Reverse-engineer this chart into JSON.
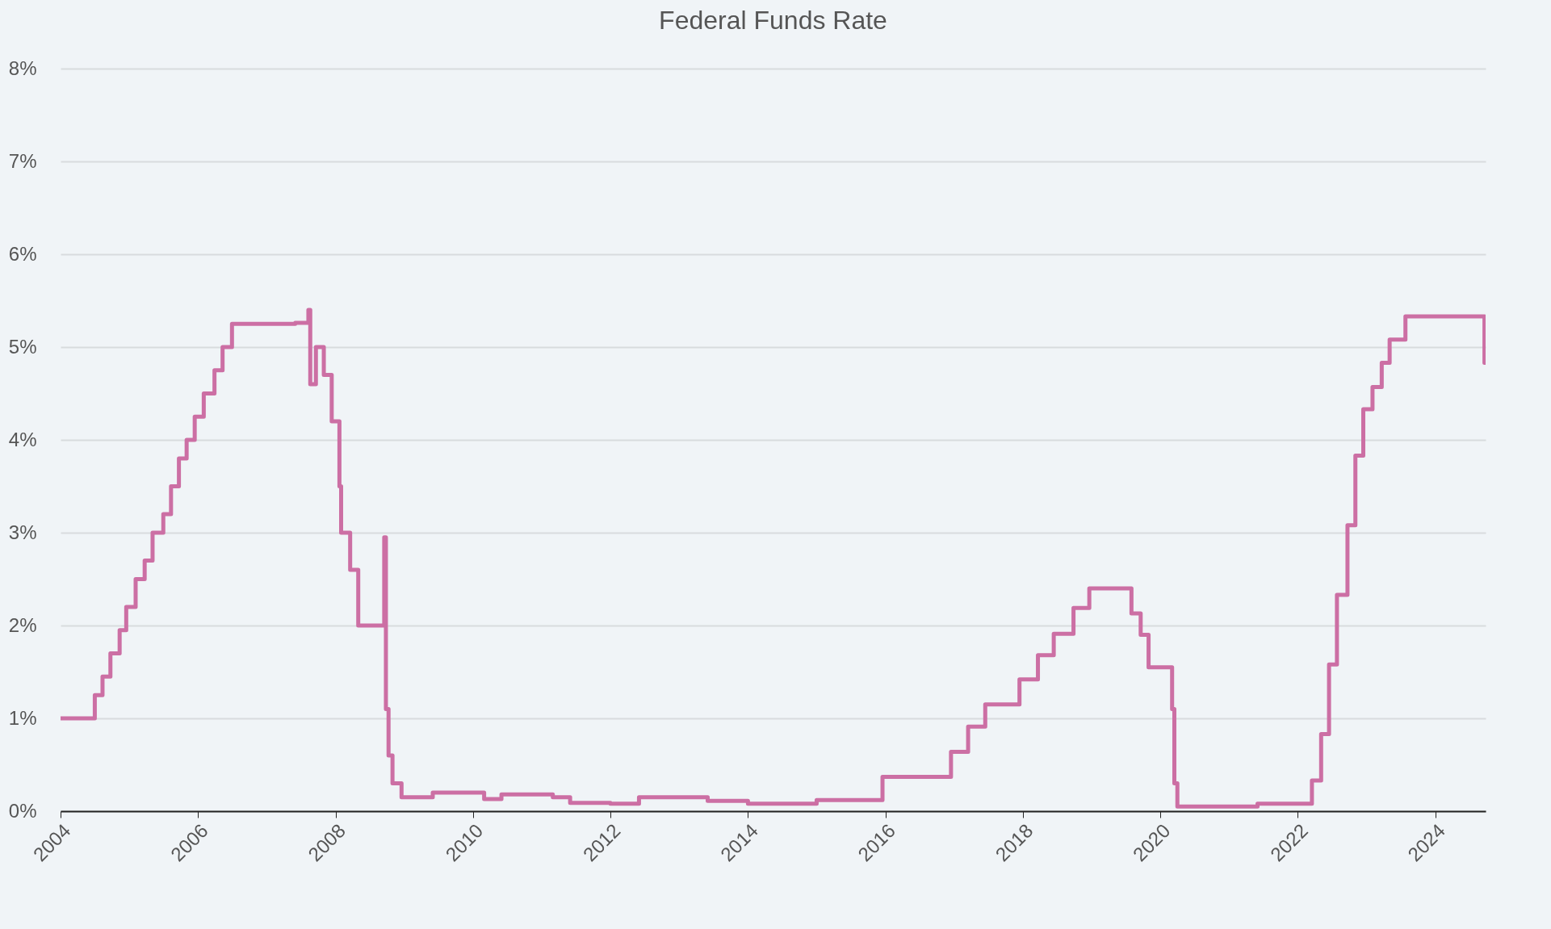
{
  "chart_data": {
    "type": "step",
    "title": "Federal Funds Rate",
    "color": "#cc6fa4",
    "grid": "y",
    "line_style": "solid",
    "x": [
      "2004-01-01",
      "2004-06-30",
      "2004-07-01",
      "2004-08-11",
      "2004-09-22",
      "2004-11-10",
      "2004-12-15",
      "2005-02-03",
      "2005-03-23",
      "2005-05-04",
      "2005-06-30",
      "2005-08-10",
      "2005-09-21",
      "2005-11-01",
      "2005-12-14",
      "2006-01-31",
      "2006-03-29",
      "2006-05-11",
      "2006-06-30",
      "2007-01-15",
      "2007-06-01",
      "2007-08-10",
      "2007-08-20",
      "2007-09-19",
      "2007-10-31",
      "2007-12-12",
      "2008-01-22",
      "2008-01-31",
      "2008-03-19",
      "2008-05-01",
      "2008-09-10",
      "2008-09-16",
      "2008-09-25",
      "2008-10-09",
      "2008-10-30",
      "2008-12-17",
      "2009-06-01",
      "2010-03-01",
      "2010-06-01",
      "2011-03-01",
      "2011-06-01",
      "2012-01-01",
      "2012-06-01",
      "2013-06-01",
      "2014-01-01",
      "2015-01-01",
      "2015-12-17",
      "2016-12-15",
      "2017-03-16",
      "2017-06-15",
      "2017-12-14",
      "2018-03-22",
      "2018-06-14",
      "2018-09-27",
      "2018-12-20",
      "2019-08-01",
      "2019-09-19",
      "2019-10-31",
      "2020-03-04",
      "2020-03-16",
      "2020-04-01",
      "2021-06-01",
      "2022-03-17",
      "2022-05-05",
      "2022-06-16",
      "2022-07-28",
      "2022-09-22",
      "2022-11-03",
      "2022-12-15",
      "2023-02-02",
      "2023-03-23",
      "2023-05-04",
      "2023-07-27",
      "2024-09-19",
      "2024-09-25"
    ],
    "values": [
      1.0,
      1.0,
      1.25,
      1.45,
      1.7,
      1.95,
      2.2,
      2.5,
      2.7,
      3.0,
      3.2,
      3.5,
      3.8,
      4.0,
      4.25,
      4.5,
      4.75,
      5.0,
      5.25,
      5.25,
      5.26,
      5.4,
      4.6,
      5.0,
      4.7,
      4.2,
      3.5,
      3.0,
      2.6,
      2.0,
      2.0,
      2.95,
      1.1,
      0.6,
      0.3,
      0.15,
      0.2,
      0.13,
      0.18,
      0.15,
      0.09,
      0.08,
      0.15,
      0.11,
      0.08,
      0.12,
      0.37,
      0.64,
      0.91,
      1.15,
      1.42,
      1.68,
      1.91,
      2.19,
      2.4,
      2.13,
      1.9,
      1.55,
      1.1,
      0.3,
      0.05,
      0.08,
      0.33,
      0.83,
      1.58,
      2.33,
      3.08,
      3.83,
      4.33,
      4.57,
      4.83,
      5.08,
      5.33,
      4.83,
      4.83
    ],
    "xlim": [
      "2004-01-01",
      "2024-09-25"
    ],
    "xticks": [
      "2004",
      "2006",
      "2008",
      "2010",
      "2012",
      "2014",
      "2016",
      "2018",
      "2020",
      "2022",
      "2024"
    ],
    "ylim": [
      0,
      8
    ],
    "yticks": [
      {
        "value": 0,
        "label": "0%"
      },
      {
        "value": 1,
        "label": "1%"
      },
      {
        "value": 2,
        "label": "2%"
      },
      {
        "value": 3,
        "label": "3%"
      },
      {
        "value": 4,
        "label": "4%"
      },
      {
        "value": 5,
        "label": "5%"
      },
      {
        "value": 6,
        "label": "6%"
      },
      {
        "value": 7,
        "label": "7%"
      },
      {
        "value": 8,
        "label": "8%"
      }
    ]
  }
}
